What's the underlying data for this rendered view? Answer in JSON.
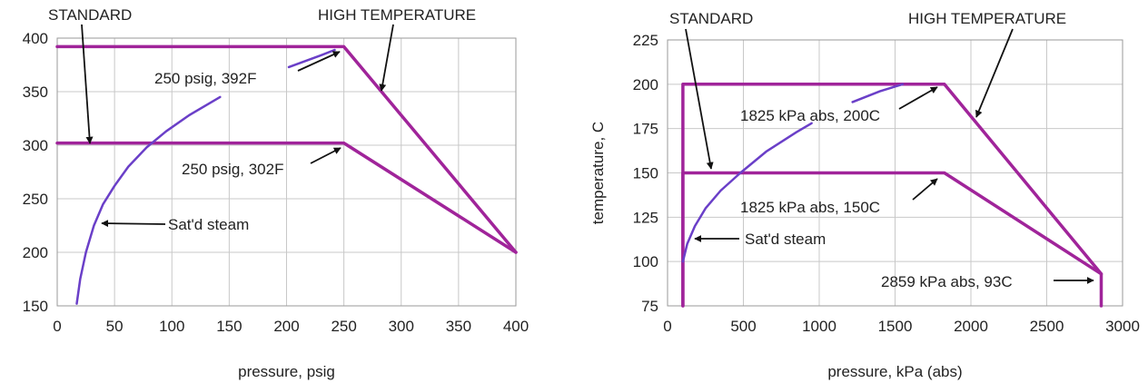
{
  "colors": {
    "rating": "#a0249a",
    "saturation": "#6a3fc8",
    "grid": "#c8c8c8",
    "frame": "#9a9a9a",
    "arrow": "#111111"
  },
  "chart_data": [
    {
      "type": "line",
      "xlabel": "pressure, psig",
      "ylabel": "",
      "xlim": [
        0,
        400
      ],
      "ylim": [
        150,
        400
      ],
      "xticks": [
        0,
        50,
        100,
        150,
        200,
        250,
        300,
        350,
        400
      ],
      "yticks": [
        150,
        200,
        250,
        300,
        350,
        400
      ],
      "grid": true,
      "series": [
        {
          "name": "STANDARD",
          "x": [
            0,
            250,
            400
          ],
          "y": [
            302,
            302,
            200
          ]
        },
        {
          "name": "HIGH TEMPERATURE",
          "x": [
            0,
            250,
            400
          ],
          "y": [
            392,
            392,
            200
          ]
        },
        {
          "name": "Sat'd steam",
          "x": [
            17,
            20,
            25,
            32,
            40,
            50,
            62,
            78,
            95,
            115,
            142
          ],
          "y": [
            152,
            175,
            200,
            225,
            245,
            262,
            280,
            298,
            313,
            328,
            345
          ]
        },
        {
          "name": "Sat'd steam",
          "x": [
            202,
            230,
            242
          ],
          "y": [
            373,
            384,
            389
          ]
        }
      ],
      "annotations": [
        {
          "text": "STANDARD",
          "x": 30,
          "y": 302
        },
        {
          "text": "HIGH TEMPERATURE",
          "x": 285,
          "y": 350
        },
        {
          "text": "250 psig, 392F",
          "x": 250,
          "y": 392
        },
        {
          "text": "250 psig, 302F",
          "x": 250,
          "y": 302
        },
        {
          "text": "Sat'd steam",
          "x": 37,
          "y": 229
        }
      ]
    },
    {
      "type": "line",
      "xlabel": "pressure, kPa (abs)",
      "ylabel": "temperature, C",
      "xlim": [
        0,
        3000
      ],
      "ylim": [
        75,
        225
      ],
      "xticks": [
        0,
        500,
        1000,
        1500,
        2000,
        2500,
        3000
      ],
      "yticks": [
        75,
        100,
        125,
        150,
        175,
        200,
        225
      ],
      "grid": true,
      "series": [
        {
          "name": "STANDARD",
          "x": [
            101,
            101,
            1825,
            2859,
            2859
          ],
          "y": [
            75,
            150,
            150,
            93,
            75
          ]
        },
        {
          "name": "HIGH TEMPERATURE",
          "x": [
            101,
            101,
            1825,
            2859
          ],
          "y": [
            75,
            200,
            200,
            93
          ]
        },
        {
          "name": "Sat'd steam",
          "x": [
            101,
            130,
            180,
            250,
            350,
            480,
            650,
            850,
            950
          ],
          "y": [
            100,
            110,
            120,
            130,
            140,
            150,
            162,
            173,
            178
          ]
        },
        {
          "name": "Sat'd steam",
          "x": [
            1220,
            1400,
            1550
          ],
          "y": [
            190,
            196,
            200
          ]
        }
      ],
      "annotations": [
        {
          "text": "STANDARD",
          "x": 280,
          "y": 150
        },
        {
          "text": "HIGH TEMPERATURE",
          "x": 2050,
          "y": 180
        },
        {
          "text": "1825 kPa abs, 200C",
          "x": 1825,
          "y": 200
        },
        {
          "text": "1825 kPa abs, 150C",
          "x": 1825,
          "y": 150
        },
        {
          "text": "Sat'd steam",
          "x": 160,
          "y": 113
        },
        {
          "text": "2859 kPa abs, 93C",
          "x": 2859,
          "y": 93
        }
      ]
    }
  ]
}
